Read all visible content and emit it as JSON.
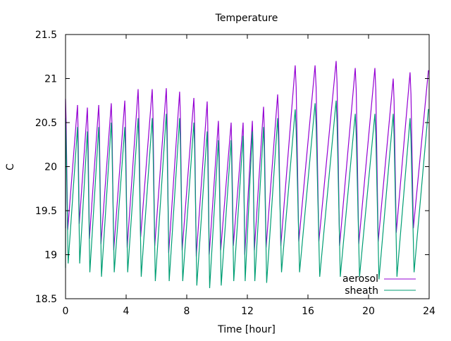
{
  "chart_data": {
    "type": "line",
    "title": "Temperature",
    "xlabel": "Time [hour]",
    "ylabel": "C",
    "xlim": [
      0,
      24
    ],
    "ylim": [
      18.5,
      21.5
    ],
    "xticks": [
      "0",
      "4",
      "8",
      "12",
      "16",
      "20",
      "24"
    ],
    "xtick_values": [
      0,
      4,
      8,
      12,
      16,
      20,
      24
    ],
    "yticks": [
      "18.5",
      "19",
      "19.5",
      "20",
      "20.5",
      "21",
      "21.5"
    ],
    "ytick_values": [
      18.5,
      19,
      19.5,
      20,
      20.5,
      21,
      21.5
    ],
    "grid": false,
    "legend_position": "bottom-right",
    "peak_times": [
      0,
      0.79,
      1.44,
      2.19,
      3.02,
      3.91,
      4.79,
      5.72,
      6.65,
      7.53,
      8.47,
      9.35,
      10.09,
      10.93,
      11.72,
      12.33,
      13.07,
      14.0,
      15.16,
      16.47,
      17.86,
      19.12,
      20.42,
      21.63,
      22.74,
      23.95
    ],
    "series": [
      {
        "name": "aerosol",
        "color": "#9400d3",
        "peaks": [
          20.77,
          20.7,
          20.67,
          20.7,
          20.72,
          20.75,
          20.88,
          20.88,
          20.89,
          20.85,
          20.78,
          20.74,
          20.52,
          20.5,
          20.5,
          20.52,
          20.68,
          20.82,
          21.15,
          21.15,
          21.2,
          21.12,
          21.12,
          21.0,
          21.07,
          21.09
        ],
        "minima": [
          19.3,
          19.28,
          19.35,
          19.18,
          19.12,
          19.05,
          19.08,
          19.2,
          19.1,
          19.02,
          19.05,
          18.98,
          19.0,
          19.05,
          19.1,
          19.0,
          19.05,
          19.08,
          19.1,
          19.15,
          19.15,
          19.1,
          19.12,
          19.15,
          19.25,
          19.3
        ]
      },
      {
        "name": "sheath",
        "color": "#009e73",
        "peaks": [
          20.55,
          20.45,
          20.4,
          20.45,
          20.5,
          20.45,
          20.55,
          20.55,
          20.6,
          20.55,
          20.5,
          20.4,
          20.3,
          20.3,
          20.35,
          20.4,
          20.45,
          20.55,
          20.65,
          20.72,
          20.75,
          20.6,
          20.6,
          20.6,
          20.55,
          20.65
        ],
        "minima": [
          18.85,
          18.9,
          18.9,
          18.8,
          18.75,
          18.8,
          18.8,
          18.75,
          18.7,
          18.7,
          18.7,
          18.65,
          18.62,
          18.65,
          18.7,
          18.7,
          18.7,
          18.68,
          18.8,
          18.8,
          18.75,
          18.75,
          18.75,
          18.72,
          18.75,
          18.8
        ]
      }
    ]
  }
}
